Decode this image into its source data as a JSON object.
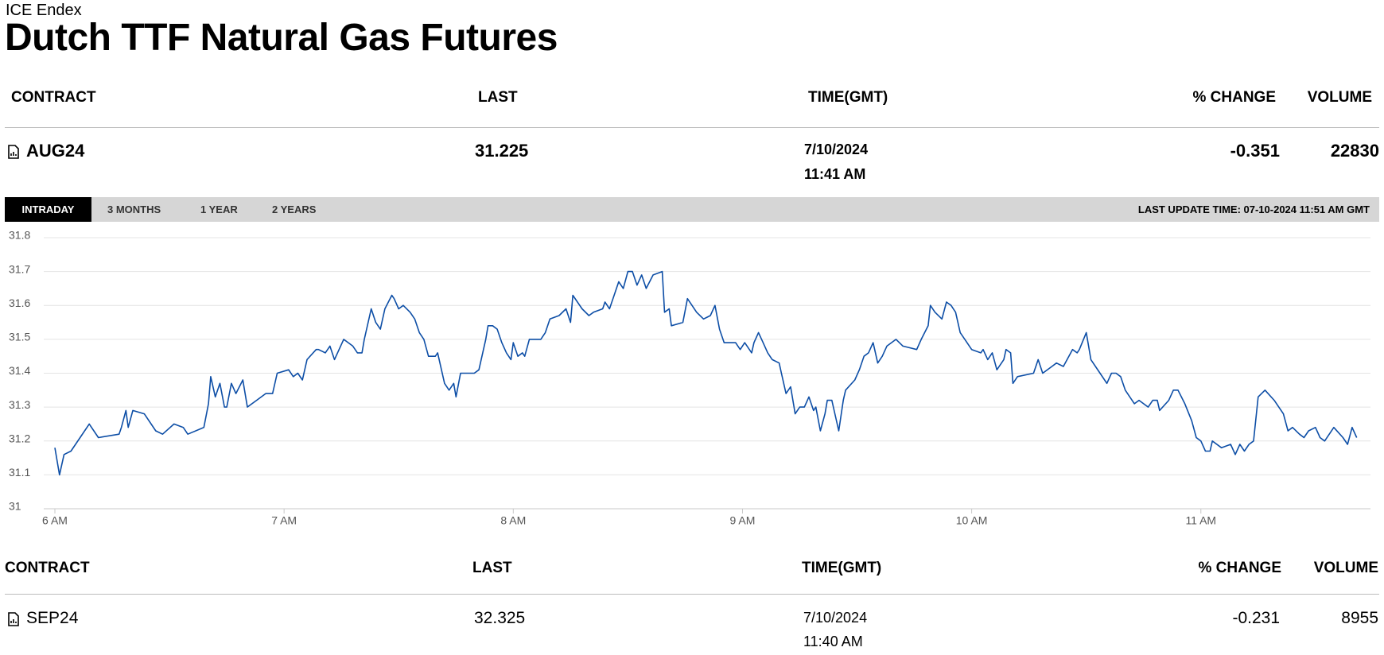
{
  "header": {
    "source": "ICE Endex",
    "title": "Dutch TTF Natural Gas Futures"
  },
  "columns": [
    "CONTRACT",
    "LAST",
    "TIME(GMT)",
    "% CHANGE",
    "VOLUME"
  ],
  "contracts": [
    {
      "contract": "AUG24",
      "last": 31.225,
      "date": "7/10/2024",
      "time": "11:41 AM",
      "change": -0.351,
      "volume": 22830
    },
    {
      "contract": "SEP24",
      "last": 32.325,
      "date": "7/10/2024",
      "time": "11:40 AM",
      "change": -0.231,
      "volume": 8955
    }
  ],
  "tabs": [
    "INTRADAY",
    "3 MONTHS",
    "1 YEAR",
    "2 YEARS"
  ],
  "last_update": "LAST UPDATE TIME: 07-10-2024 11:51 AM GMT",
  "chart_data": {
    "type": "line",
    "color": "#0d4ea6",
    "grid": true,
    "x": [
      6.0,
      6.02,
      6.04,
      6.07,
      6.11,
      6.15,
      6.19,
      6.28,
      6.29,
      6.31,
      6.32,
      6.34,
      6.39,
      6.44,
      6.47,
      6.52,
      6.56,
      6.58,
      6.65,
      6.67,
      6.68,
      6.7,
      6.72,
      6.74,
      6.75,
      6.77,
      6.79,
      6.82,
      6.84,
      6.88,
      6.92,
      6.95,
      6.97,
      7.02,
      7.04,
      7.06,
      7.08,
      7.1,
      7.14,
      7.15,
      7.18,
      7.2,
      7.22,
      7.26,
      7.3,
      7.32,
      7.34,
      7.35,
      7.38,
      7.4,
      7.42,
      7.44,
      7.47,
      7.48,
      7.5,
      7.52,
      7.55,
      7.57,
      7.59,
      7.61,
      7.63,
      7.66,
      7.67,
      7.7,
      7.72,
      7.74,
      7.75,
      7.77,
      7.81,
      7.83,
      7.85,
      7.88,
      7.89,
      7.91,
      7.93,
      7.95,
      7.97,
      7.99,
      8.0,
      8.02,
      8.04,
      8.05,
      8.07,
      8.12,
      8.14,
      8.16,
      8.2,
      8.23,
      8.25,
      8.26,
      8.28,
      8.3,
      8.33,
      8.35,
      8.39,
      8.4,
      8.42,
      8.44,
      8.46,
      8.48,
      8.5,
      8.52,
      8.54,
      8.56,
      8.58,
      8.61,
      8.65,
      8.66,
      8.68,
      8.69,
      8.74,
      8.76,
      8.8,
      8.83,
      8.86,
      8.88,
      8.9,
      8.92,
      8.97,
      8.99,
      9.01,
      9.04,
      9.05,
      9.07,
      9.09,
      9.11,
      9.13,
      9.16,
      9.17,
      9.19,
      9.21,
      9.23,
      9.25,
      9.27,
      9.29,
      9.31,
      9.32,
      9.34,
      9.36,
      9.37,
      9.39,
      9.42,
      9.44,
      9.45,
      9.49,
      9.51,
      9.53,
      9.55,
      9.57,
      9.59,
      9.61,
      9.63,
      9.67,
      9.7,
      9.76,
      9.78,
      9.81,
      9.82,
      9.84,
      9.87,
      9.89,
      9.91,
      9.93,
      9.95,
      9.97,
      10.0,
      10.04,
      10.05,
      10.07,
      10.09,
      10.11,
      10.14,
      10.15,
      10.17,
      10.18,
      10.2,
      10.27,
      10.29,
      10.31,
      10.35,
      10.37,
      10.4,
      10.44,
      10.46,
      10.47,
      10.5,
      10.52,
      10.56,
      10.59,
      10.61,
      10.63,
      10.65,
      10.67,
      10.71,
      10.73,
      10.77,
      10.79,
      10.81,
      10.82,
      10.86,
      10.88,
      10.9,
      10.93,
      10.96,
      10.98,
      11.0,
      11.02,
      11.04,
      11.05,
      11.09,
      11.13,
      11.15,
      11.17,
      11.19,
      11.21,
      11.23,
      11.25,
      11.28,
      11.32,
      11.36,
      11.38,
      11.4,
      11.43,
      11.45,
      11.47,
      11.5,
      11.52,
      11.54,
      11.58,
      11.62,
      11.64,
      11.66,
      11.68
    ],
    "values": [
      31.18,
      31.1,
      31.16,
      31.17,
      31.21,
      31.25,
      31.21,
      31.22,
      31.24,
      31.29,
      31.24,
      31.29,
      31.28,
      31.23,
      31.22,
      31.25,
      31.24,
      31.22,
      31.24,
      31.31,
      31.39,
      31.33,
      31.37,
      31.3,
      31.3,
      31.37,
      31.34,
      31.38,
      31.3,
      31.32,
      31.34,
      31.34,
      31.4,
      31.41,
      31.39,
      31.4,
      31.38,
      31.44,
      31.47,
      31.47,
      31.46,
      31.48,
      31.44,
      31.5,
      31.48,
      31.46,
      31.46,
      31.5,
      31.59,
      31.55,
      31.53,
      31.59,
      31.63,
      31.62,
      31.59,
      31.6,
      31.58,
      31.56,
      31.52,
      31.5,
      31.45,
      31.45,
      31.46,
      31.37,
      31.35,
      31.37,
      31.33,
      31.4,
      31.4,
      31.4,
      31.41,
      31.5,
      31.54,
      31.54,
      31.53,
      31.49,
      31.46,
      31.44,
      31.49,
      31.45,
      31.46,
      31.45,
      31.5,
      31.5,
      31.52,
      31.56,
      31.57,
      31.59,
      31.55,
      31.63,
      31.61,
      31.59,
      31.57,
      31.58,
      31.59,
      31.61,
      31.59,
      31.63,
      31.67,
      31.65,
      31.7,
      31.7,
      31.66,
      31.69,
      31.65,
      31.69,
      31.7,
      31.58,
      31.59,
      31.54,
      31.55,
      31.62,
      31.58,
      31.56,
      31.57,
      31.6,
      31.53,
      31.49,
      31.49,
      31.47,
      31.49,
      31.46,
      31.49,
      31.52,
      31.49,
      31.46,
      31.44,
      31.43,
      31.4,
      31.34,
      31.36,
      31.28,
      31.3,
      31.3,
      31.33,
      31.29,
      31.3,
      31.23,
      31.28,
      31.32,
      31.32,
      31.23,
      31.32,
      31.35,
      31.38,
      31.41,
      31.45,
      31.46,
      31.49,
      31.43,
      31.45,
      31.48,
      31.5,
      31.48,
      31.47,
      31.5,
      31.54,
      31.6,
      31.58,
      31.56,
      31.61,
      31.6,
      31.58,
      31.52,
      31.5,
      31.47,
      31.46,
      31.47,
      31.44,
      31.46,
      31.41,
      31.44,
      31.47,
      31.46,
      31.37,
      31.39,
      31.4,
      31.44,
      31.4,
      31.42,
      31.43,
      31.42,
      31.47,
      31.46,
      31.47,
      31.52,
      31.44,
      31.4,
      31.37,
      31.4,
      31.4,
      31.39,
      31.35,
      31.31,
      31.32,
      31.3,
      31.32,
      31.32,
      31.29,
      31.32,
      31.35,
      31.35,
      31.31,
      31.26,
      31.21,
      31.2,
      31.17,
      31.17,
      31.2,
      31.18,
      31.19,
      31.16,
      31.19,
      31.17,
      31.19,
      31.2,
      31.33,
      31.35,
      31.32,
      31.28,
      31.23,
      31.24,
      31.22,
      31.21,
      31.23,
      31.24,
      31.21,
      31.2,
      31.24,
      31.21,
      31.19,
      31.24,
      31.21
    ],
    "xlim": [
      6,
      11.74
    ],
    "xticks": [
      {
        "value": 6,
        "label": "6 AM"
      },
      {
        "value": 7,
        "label": "7 AM"
      },
      {
        "value": 8,
        "label": "8 AM"
      },
      {
        "value": 9,
        "label": "9 AM"
      },
      {
        "value": 10,
        "label": "10 AM"
      },
      {
        "value": 11,
        "label": "11 AM"
      }
    ],
    "ylim": [
      31,
      31.8
    ],
    "yticks": [
      31,
      31.1,
      31.2,
      31.3,
      31.4,
      31.5,
      31.6,
      31.7,
      31.8
    ]
  }
}
